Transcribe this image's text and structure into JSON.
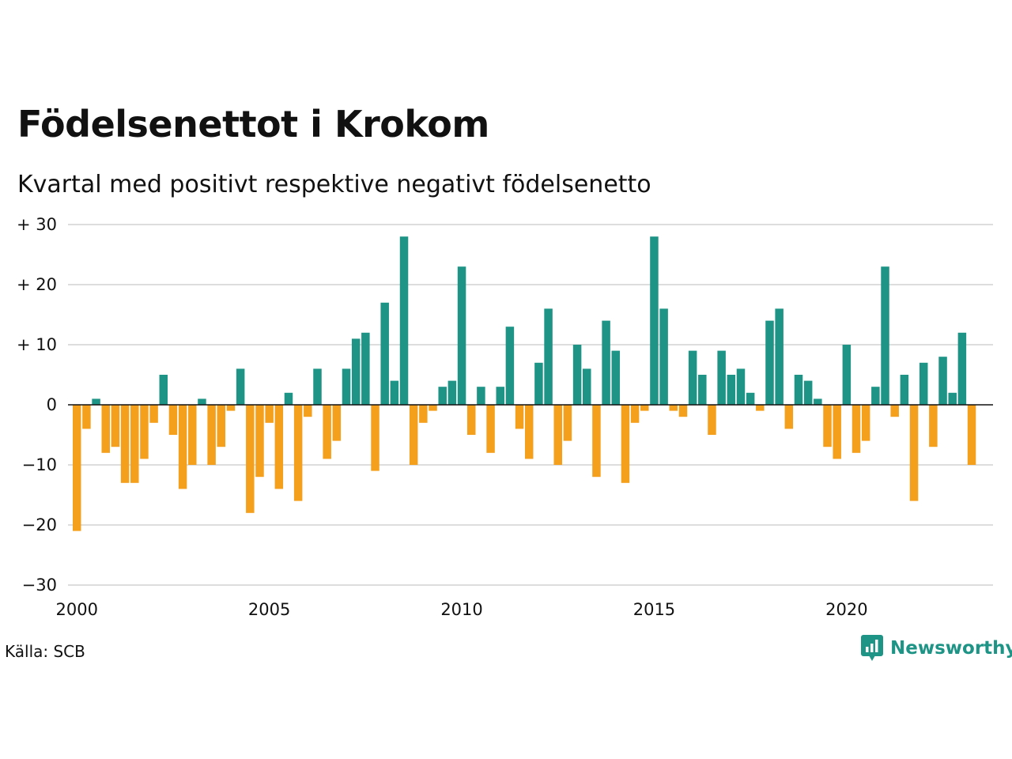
{
  "title": "Födelsenettot i Krokom",
  "subtitle": "Kvartal med positivt respektive negativt födelsenetto",
  "source": "Källa: SCB",
  "brand": "Newsworthy",
  "colors": {
    "positive": "#1e9486",
    "negative": "#f5a01d",
    "grid": "#dddddd",
    "zero": "#111111",
    "brand": "#1e9486"
  },
  "chart_data": {
    "type": "bar",
    "title": "Födelsenettot i Krokom",
    "subtitle": "Kvartal med positivt respektive negativt födelsenetto",
    "xlabel": "",
    "ylabel": "",
    "ylim": [
      -30,
      30
    ],
    "yticks": [
      {
        "value": 30,
        "label": "+ 30"
      },
      {
        "value": 20,
        "label": "+ 20"
      },
      {
        "value": 10,
        "label": "+ 10"
      },
      {
        "value": 0,
        "label": "0"
      },
      {
        "value": -10,
        "label": "−10"
      },
      {
        "value": -20,
        "label": "−20"
      },
      {
        "value": -30,
        "label": "−30"
      }
    ],
    "xticks": [
      {
        "index": 0,
        "label": "2000"
      },
      {
        "index": 20,
        "label": "2005"
      },
      {
        "index": 40,
        "label": "2010"
      },
      {
        "index": 60,
        "label": "2015"
      },
      {
        "index": 80,
        "label": "2020"
      }
    ],
    "grid": true,
    "legend": "none",
    "start": "2000 Q1",
    "frequency": "quarterly",
    "values": [
      -21,
      -4,
      1,
      -8,
      -7,
      -13,
      -13,
      -9,
      -3,
      5,
      -5,
      -14,
      -10,
      1,
      -10,
      -7,
      -1,
      6,
      -18,
      -12,
      -3,
      -14,
      2,
      -16,
      -2,
      6,
      -9,
      -6,
      6,
      11,
      12,
      -11,
      17,
      4,
      28,
      -10,
      -3,
      -1,
      3,
      4,
      23,
      -5,
      3,
      -8,
      3,
      13,
      -4,
      -9,
      7,
      16,
      -10,
      -6,
      10,
      6,
      -12,
      14,
      9,
      -13,
      -3,
      -1,
      28,
      16,
      -1,
      -2,
      9,
      5,
      -5,
      9,
      5,
      6,
      2,
      -1,
      14,
      16,
      -4,
      5,
      4,
      1,
      -7,
      -9,
      10,
      -8,
      -6,
      3,
      23,
      -2,
      5,
      -16,
      7,
      -7,
      8,
      2,
      12,
      -10
    ]
  }
}
